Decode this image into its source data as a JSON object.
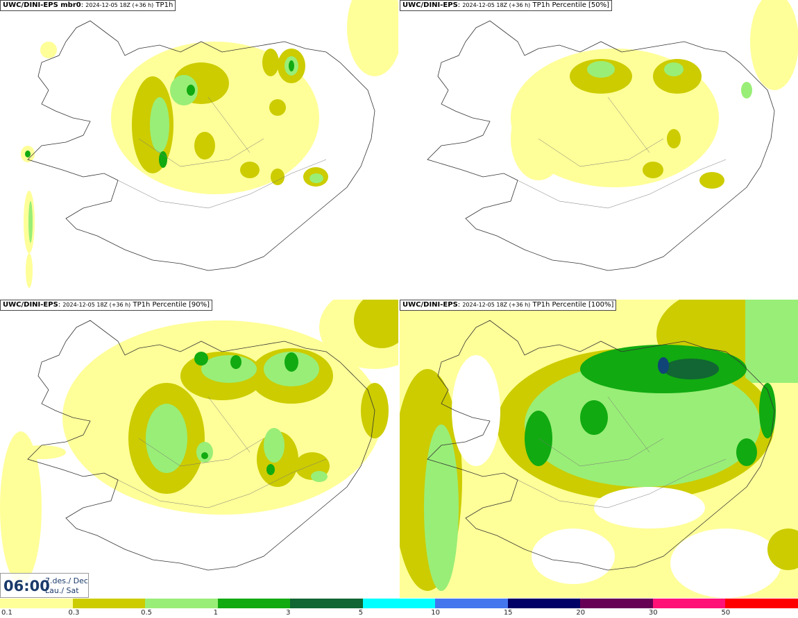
{
  "panels": [
    {
      "model": "UWC/DINI-EPS mbr0",
      "run": "2024-12-05 18Z (+36 h)",
      "field": "TP1h"
    },
    {
      "model": "UWC/DINI-EPS",
      "run": "2024-12-05 18Z (+36 h)",
      "field": "TP1h Percentile [50%]"
    },
    {
      "model": "UWC/DINI-EPS",
      "run": "2024-12-05 18Z (+36 h)",
      "field": "TP1h Percentile [90%]"
    },
    {
      "model": "UWC/DINI-EPS",
      "run": "2024-12-05 18Z (+36 h)",
      "field": "TP1h Percentile [100%]"
    }
  ],
  "valid_time": {
    "time": "06:00",
    "date_line": "7.des./ Dec",
    "day_line": "Lau./ Sat"
  },
  "legend": {
    "labels": [
      "0.1",
      "0.3",
      "0.5",
      "1",
      "3",
      "5",
      "10",
      "15",
      "20",
      "30",
      "50"
    ],
    "colors": [
      "#ffff99",
      "#cccc00",
      "#99ee77",
      "#11aa11",
      "#116633",
      "#00ffff",
      "#4477ee",
      "#000066",
      "#660055",
      "#ff1177",
      "#ff0000"
    ]
  },
  "colors": {
    "lvl1": "#ffff99",
    "lvl2": "#cccc00",
    "lvl3": "#99ee77",
    "lvl4": "#11aa11",
    "lvl5": "#116633",
    "coast": "#333333"
  }
}
